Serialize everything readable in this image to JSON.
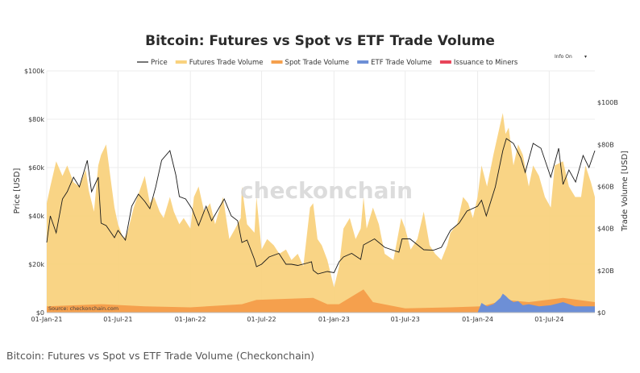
{
  "caption": "Bitcoin: Futures vs Spot vs ETF Trade Volume (Checkonchain)",
  "info_toggle": {
    "label": "Info On",
    "arrow": "▾"
  },
  "colors": {
    "price": "#1a1a1a",
    "futures": "#f9d27e",
    "spot": "#f5a04d",
    "etf": "#6d8fd6",
    "issuance": "#e8455a",
    "grid": "#ececec",
    "watermark": "#d6d6d6"
  },
  "chart_data": {
    "type": "area",
    "title": "Bitcoin: Futures vs Spot vs ETF Trade Volume",
    "watermark": "checkonchain",
    "source": "Source: checkonchain.com",
    "ylabel_left": "Price [USD]",
    "ylabel_right": "Trade Volume [USD]",
    "ylim_left": [
      0,
      100000
    ],
    "ylim_right": [
      0,
      115000000000
    ],
    "xlim": [
      "2021-01-01",
      "2024-10-25"
    ],
    "x_ticks": [
      {
        "date": "2021-01-01",
        "label": "01-Jan-21"
      },
      {
        "date": "2021-07-01",
        "label": "01-Jul-21"
      },
      {
        "date": "2022-01-01",
        "label": "01-Jan-22"
      },
      {
        "date": "2022-07-01",
        "label": "01-Jul-22"
      },
      {
        "date": "2023-01-01",
        "label": "01-Jan-23"
      },
      {
        "date": "2023-07-01",
        "label": "01-Jul-23"
      },
      {
        "date": "2024-01-01",
        "label": "01-Jan-24"
      },
      {
        "date": "2024-07-01",
        "label": "01-Jul-24"
      }
    ],
    "y_ticks_left": [
      {
        "value": 0,
        "label": "$0"
      },
      {
        "value": 20000,
        "label": "$20k"
      },
      {
        "value": 40000,
        "label": "$40k"
      },
      {
        "value": 60000,
        "label": "$60k"
      },
      {
        "value": 80000,
        "label": "$80k"
      },
      {
        "value": 100000,
        "label": "$100k"
      }
    ],
    "y_ticks_right": [
      {
        "value": 0,
        "label": "$0"
      },
      {
        "value": 20000000000,
        "label": "$20B"
      },
      {
        "value": 40000000000,
        "label": "$40B"
      },
      {
        "value": 60000000000,
        "label": "$60B"
      },
      {
        "value": 80000000000,
        "label": "$80B"
      },
      {
        "value": 100000000000,
        "label": "$100B"
      }
    ],
    "legend": [
      {
        "name": "Price",
        "key": "price",
        "kind": "line"
      },
      {
        "name": "Futures Trade Volume",
        "key": "futures",
        "kind": "area"
      },
      {
        "name": "Spot Trade Volume",
        "key": "spot",
        "kind": "area"
      },
      {
        "name": "ETF Trade Volume",
        "key": "etf",
        "kind": "area"
      },
      {
        "name": "Issuance to Miners",
        "key": "issuance",
        "kind": "area"
      }
    ],
    "series": [
      {
        "name": "Futures Trade Volume",
        "axis": "right",
        "key": "futures",
        "x": [
          "2021-01-01",
          "2021-01-10",
          "2021-01-25",
          "2021-02-10",
          "2021-02-22",
          "2021-03-10",
          "2021-03-25",
          "2021-04-10",
          "2021-04-18",
          "2021-05-01",
          "2021-05-12",
          "2021-05-19",
          "2021-06-01",
          "2021-06-15",
          "2021-06-22",
          "2021-07-01",
          "2021-07-15",
          "2021-07-25",
          "2021-08-10",
          "2021-08-25",
          "2021-09-07",
          "2021-09-20",
          "2021-10-01",
          "2021-10-15",
          "2021-10-25",
          "2021-11-10",
          "2021-11-20",
          "2021-12-04",
          "2021-12-15",
          "2022-01-01",
          "2022-01-10",
          "2022-01-22",
          "2022-02-05",
          "2022-02-20",
          "2022-03-05",
          "2022-03-25",
          "2022-04-10",
          "2022-04-25",
          "2022-05-09",
          "2022-05-12",
          "2022-05-25",
          "2022-06-13",
          "2022-06-18",
          "2022-07-01",
          "2022-07-15",
          "2022-08-01",
          "2022-08-15",
          "2022-09-01",
          "2022-09-15",
          "2022-10-01",
          "2022-10-15",
          "2022-11-01",
          "2022-11-09",
          "2022-11-20",
          "2022-12-01",
          "2022-12-15",
          "2023-01-01",
          "2023-01-14",
          "2023-01-25",
          "2023-02-10",
          "2023-02-25",
          "2023-03-10",
          "2023-03-17",
          "2023-03-25",
          "2023-04-10",
          "2023-04-25",
          "2023-05-10",
          "2023-06-01",
          "2023-06-21",
          "2023-07-01",
          "2023-07-15",
          "2023-08-01",
          "2023-08-17",
          "2023-09-01",
          "2023-09-15",
          "2023-10-01",
          "2023-10-16",
          "2023-10-24",
          "2023-11-10",
          "2023-11-25",
          "2023-12-08",
          "2023-12-20",
          "2024-01-01",
          "2024-01-11",
          "2024-01-25",
          "2024-02-10",
          "2024-02-28",
          "2024-03-05",
          "2024-03-12",
          "2024-03-20",
          "2024-04-01",
          "2024-04-13",
          "2024-04-25",
          "2024-05-10",
          "2024-05-21",
          "2024-06-05",
          "2024-06-20",
          "2024-07-05",
          "2024-07-15",
          "2024-08-05",
          "2024-08-20",
          "2024-09-05",
          "2024-09-20",
          "2024-10-01",
          "2024-10-15",
          "2024-10-25"
        ],
        "values": [
          52,
          60,
          72,
          65,
          70,
          62,
          60,
          68,
          58,
          48,
          70,
          75,
          80,
          60,
          50,
          42,
          35,
          38,
          50,
          58,
          65,
          52,
          55,
          48,
          45,
          55,
          48,
          42,
          45,
          40,
          55,
          60,
          48,
          52,
          42,
          55,
          35,
          40,
          45,
          60,
          42,
          38,
          55,
          30,
          35,
          32,
          28,
          30,
          25,
          28,
          22,
          50,
          52,
          35,
          32,
          25,
          12,
          22,
          40,
          45,
          35,
          40,
          55,
          40,
          50,
          42,
          28,
          25,
          45,
          40,
          30,
          35,
          48,
          32,
          28,
          25,
          32,
          38,
          42,
          55,
          52,
          45,
          55,
          70,
          60,
          75,
          90,
          95,
          85,
          88,
          70,
          80,
          75,
          60,
          70,
          65,
          55,
          50,
          70,
          72,
          60,
          55,
          55,
          70,
          62,
          55
        ]
      },
      {
        "name": "Spot Trade Volume",
        "axis": "right",
        "key": "spot",
        "x": [
          "2021-01-01",
          "2021-05-19",
          "2021-09-07",
          "2022-01-01",
          "2022-05-12",
          "2022-06-18",
          "2022-11-09",
          "2022-12-15",
          "2023-01-14",
          "2023-03-17",
          "2023-04-10",
          "2023-07-01",
          "2023-10-24",
          "2024-01-11",
          "2024-03-12",
          "2024-05-10",
          "2024-08-05",
          "2024-10-25"
        ],
        "values": [
          3,
          4,
          3,
          2.5,
          4,
          6,
          7,
          4,
          4,
          11,
          5,
          2,
          2.5,
          3,
          6,
          5,
          7,
          5
        ]
      },
      {
        "name": "ETF Trade Volume",
        "axis": "right",
        "key": "etf",
        "x": [
          "2024-01-01",
          "2024-01-11",
          "2024-01-25",
          "2024-02-10",
          "2024-02-28",
          "2024-03-05",
          "2024-03-12",
          "2024-03-20",
          "2024-04-01",
          "2024-04-13",
          "2024-04-25",
          "2024-05-10",
          "2024-06-05",
          "2024-07-05",
          "2024-08-05",
          "2024-09-05",
          "2024-10-01",
          "2024-10-25"
        ],
        "values": [
          0,
          4.6,
          3,
          4,
          7,
          9,
          8,
          6.5,
          5,
          5.5,
          3.5,
          4,
          3,
          3.5,
          5,
          3,
          3,
          3
        ]
      },
      {
        "name": "Issuance to Miners",
        "axis": "right",
        "key": "issuance",
        "x": [
          "2021-01-01",
          "2024-10-25"
        ],
        "values": [
          0.03,
          0.03
        ]
      },
      {
        "name": "Price",
        "axis": "left",
        "key": "price",
        "x": [
          "2021-01-01",
          "2021-01-10",
          "2021-01-25",
          "2021-02-10",
          "2021-02-22",
          "2021-03-10",
          "2021-03-25",
          "2021-04-14",
          "2021-04-25",
          "2021-05-12",
          "2021-05-19",
          "2021-06-01",
          "2021-06-22",
          "2021-07-01",
          "2021-07-20",
          "2021-08-05",
          "2021-08-22",
          "2021-09-07",
          "2021-09-20",
          "2021-10-05",
          "2021-10-20",
          "2021-11-10",
          "2021-11-25",
          "2021-12-04",
          "2021-12-20",
          "2022-01-05",
          "2022-01-22",
          "2022-02-10",
          "2022-02-24",
          "2022-03-28",
          "2022-04-15",
          "2022-05-01",
          "2022-05-12",
          "2022-05-25",
          "2022-06-13",
          "2022-06-18",
          "2022-07-01",
          "2022-07-20",
          "2022-08-14",
          "2022-09-01",
          "2022-09-15",
          "2022-10-01",
          "2022-10-25",
          "2022-11-05",
          "2022-11-09",
          "2022-11-21",
          "2022-12-15",
          "2023-01-01",
          "2023-01-14",
          "2023-01-25",
          "2023-02-15",
          "2023-03-10",
          "2023-03-17",
          "2023-04-14",
          "2023-05-10",
          "2023-06-15",
          "2023-06-23",
          "2023-07-13",
          "2023-08-17",
          "2023-09-11",
          "2023-10-01",
          "2023-10-24",
          "2023-11-15",
          "2023-12-05",
          "2024-01-01",
          "2024-01-11",
          "2024-01-23",
          "2024-02-15",
          "2024-03-05",
          "2024-03-14",
          "2024-04-01",
          "2024-04-20",
          "2024-05-01",
          "2024-05-21",
          "2024-06-10",
          "2024-07-05",
          "2024-07-25",
          "2024-08-05",
          "2024-08-20",
          "2024-09-06",
          "2024-09-25",
          "2024-10-10",
          "2024-10-25"
        ],
        "values": [
          29000,
          40000,
          33000,
          47000,
          50000,
          56000,
          52000,
          63000,
          50000,
          56000,
          37000,
          36000,
          31000,
          34000,
          30000,
          44000,
          49000,
          46000,
          43000,
          52000,
          63000,
          67000,
          57000,
          48000,
          47000,
          43000,
          36000,
          44000,
          38000,
          47000,
          40000,
          38000,
          29000,
          30000,
          22000,
          19000,
          20000,
          23000,
          24500,
          20000,
          20000,
          19500,
          20500,
          21000,
          17500,
          16000,
          17000,
          16500,
          21000,
          23000,
          24500,
          22000,
          28000,
          30500,
          27000,
          25000,
          30500,
          30500,
          26000,
          25800,
          27000,
          34000,
          37000,
          42000,
          44000,
          46500,
          40000,
          52000,
          67000,
          72000,
          70000,
          64000,
          58000,
          70000,
          68000,
          56000,
          68000,
          53000,
          59000,
          54000,
          65000,
          60000,
          67000
        ]
      }
    ]
  }
}
